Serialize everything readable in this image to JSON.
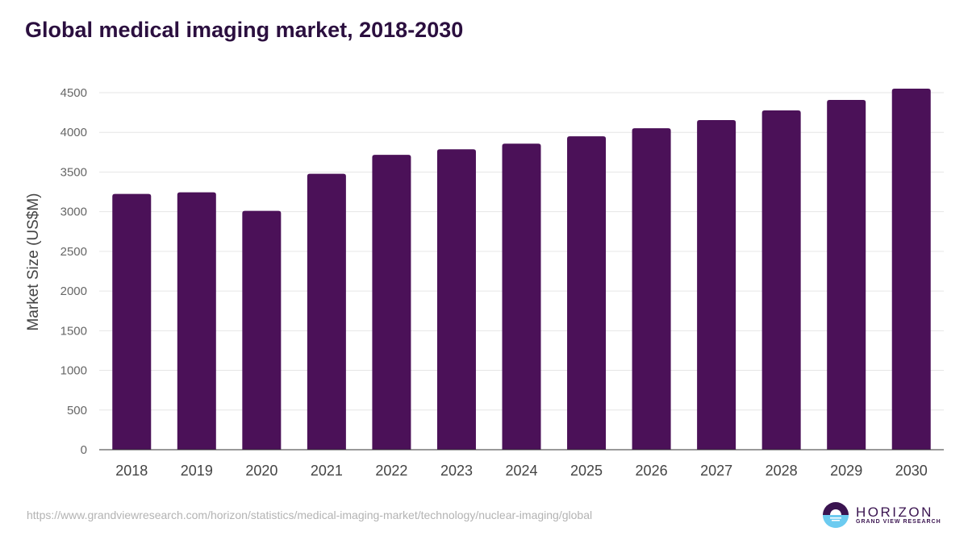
{
  "title": "Global medical imaging market, 2018-2030",
  "source_url": "https://www.grandviewresearch.com/horizon/statistics/medical-imaging-market/technology/nuclear-imaging/global",
  "logo": {
    "name": "HORIZON",
    "subtitle": "GRAND VIEW RESEARCH"
  },
  "chart_data": {
    "type": "bar",
    "title": "Global medical imaging market, 2018-2030",
    "xlabel": "",
    "ylabel": "Market Size (US$M)",
    "categories": [
      "2018",
      "2019",
      "2020",
      "2021",
      "2022",
      "2023",
      "2024",
      "2025",
      "2026",
      "2027",
      "2028",
      "2029",
      "2030"
    ],
    "values": [
      3224,
      3244,
      3010,
      3478,
      3716,
      3787,
      3858,
      3950,
      4052,
      4154,
      4276,
      4408,
      4551
    ],
    "ylim": [
      0,
      4500
    ],
    "yticks": [
      0,
      500,
      1000,
      1500,
      2000,
      2500,
      3000,
      3500,
      4000,
      4500
    ],
    "grid": true,
    "bar_color": "#4b1158"
  }
}
